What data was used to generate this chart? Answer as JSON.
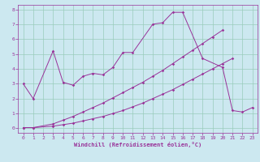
{
  "xlabel": "Windchill (Refroidissement éolien,°C)",
  "bg_color": "#cce8f0",
  "grid_color": "#99ccbb",
  "line_color": "#993399",
  "xlim": [
    -0.5,
    23.5
  ],
  "ylim": [
    -0.3,
    8.3
  ],
  "xticks": [
    0,
    1,
    2,
    3,
    4,
    5,
    6,
    7,
    8,
    9,
    10,
    11,
    12,
    13,
    14,
    15,
    16,
    17,
    18,
    19,
    20,
    21,
    22,
    23
  ],
  "yticks": [
    0,
    1,
    2,
    3,
    4,
    5,
    6,
    7,
    8
  ],
  "series1": {
    "x": [
      0,
      1,
      3,
      4,
      5,
      6,
      7,
      8,
      9,
      10,
      11,
      13,
      14,
      15,
      16,
      18,
      20,
      21,
      22,
      23
    ],
    "y": [
      3.0,
      2.0,
      5.2,
      3.1,
      2.9,
      3.5,
      3.7,
      3.6,
      4.1,
      5.1,
      5.1,
      7.0,
      7.1,
      7.8,
      7.8,
      4.7,
      4.1,
      1.2,
      1.1,
      1.4
    ]
  },
  "series2": {
    "x": [
      0,
      1,
      3,
      4,
      5,
      6,
      7,
      8,
      9,
      10,
      11,
      12,
      13,
      14,
      15,
      16,
      17,
      18,
      19,
      20,
      21
    ],
    "y": [
      0.05,
      0.05,
      0.15,
      0.25,
      0.35,
      0.5,
      0.65,
      0.8,
      1.0,
      1.2,
      1.45,
      1.7,
      2.0,
      2.3,
      2.6,
      2.95,
      3.3,
      3.65,
      4.0,
      4.35,
      4.7
    ]
  },
  "series3": {
    "x": [
      0,
      1,
      3,
      4,
      5,
      6,
      7,
      8,
      9,
      10,
      11,
      12,
      13,
      14,
      15,
      16,
      17,
      18,
      19,
      20
    ],
    "y": [
      0.05,
      0.05,
      0.3,
      0.55,
      0.8,
      1.1,
      1.4,
      1.7,
      2.05,
      2.4,
      2.75,
      3.1,
      3.5,
      3.9,
      4.35,
      4.8,
      5.25,
      5.7,
      6.15,
      6.6
    ]
  }
}
